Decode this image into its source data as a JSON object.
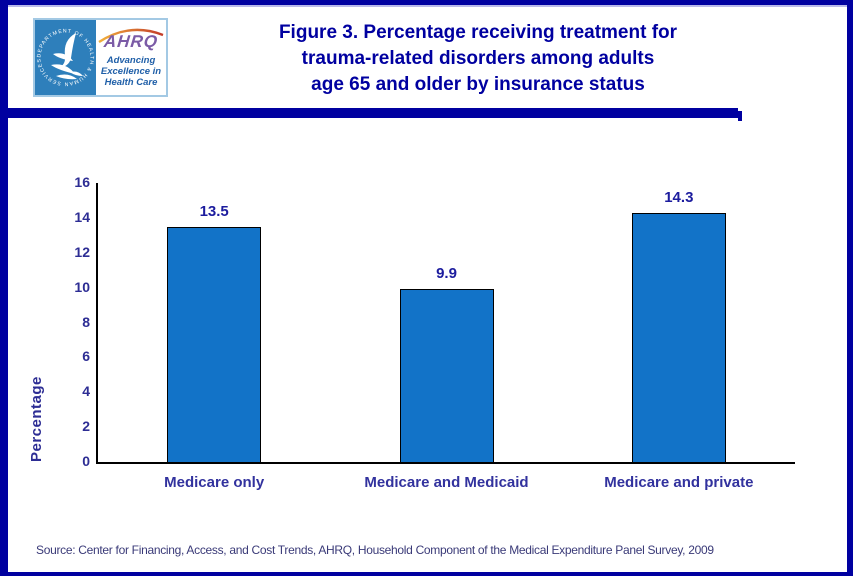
{
  "header": {
    "logo": {
      "seal_text": "DEPARTMENT OF HEALTH & HUMAN SERVICES • USA",
      "ahrq_acronym": "AHRQ",
      "tagline_lines": [
        "Advancing",
        "Excellence in",
        "Health Care"
      ]
    },
    "title_lines": [
      "Figure 3. Percentage receiving treatment for",
      "trauma-related disorders among adults",
      "age 65 and older by insurance status"
    ]
  },
  "chart_data": {
    "type": "bar",
    "title": "Figure 3. Percentage receiving treatment for trauma-related disorders among adults age 65 and older by insurance status",
    "categories": [
      "Medicare only",
      "Medicare and Medicaid",
      "Medicare and private"
    ],
    "values": [
      13.5,
      9.9,
      14.3
    ],
    "value_labels": [
      "13.5",
      "9.9",
      "14.3"
    ],
    "xlabel": "",
    "ylabel": "Percentage",
    "ylim": [
      0,
      16
    ],
    "ytick_step": 2,
    "grid": false,
    "legend": "none",
    "bar_color": "#1273C8",
    "bar_border_color": "#000000"
  },
  "footer": {
    "source": "Source: Center for Financing, Access, and Cost Trends, AHRQ, Household Component of the Medical Expenditure Panel Survey, 2009"
  },
  "colors": {
    "frame": "#0000A0",
    "title_text": "#0000A0",
    "axis_text": "#2D2D94",
    "value_text": "#1C1C9E",
    "category_text": "#32329E",
    "source_text": "#3A3A78",
    "seal_background": "#2E7FBB",
    "ahrq_purple": "#7B5BA6",
    "tagline_blue": "#1F5FA8"
  }
}
